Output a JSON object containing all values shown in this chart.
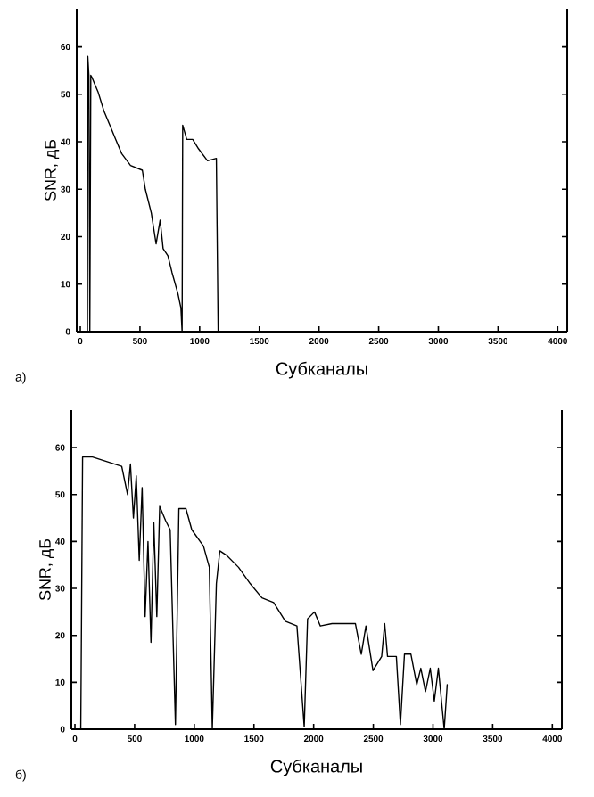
{
  "chart_data": [
    {
      "type": "line",
      "xlabel": "Субканалы",
      "ylabel": "SNR, дБ",
      "annotations": [
        "а)"
      ],
      "xlim": [
        -30,
        4080
      ],
      "ylim": [
        0,
        68
      ],
      "xticks": [
        0,
        500,
        1000,
        1500,
        2000,
        2500,
        3000,
        3500,
        4000
      ],
      "yticks": [
        0,
        10,
        20,
        30,
        40,
        50,
        60
      ],
      "series": [
        {
          "color": "#000000",
          "x": [
            60,
            63,
            72,
            80,
            88,
            99,
            149,
            198,
            248,
            297,
            347,
            421,
            520,
            545,
            595,
            635,
            669,
            694,
            734,
            768,
            818,
            843,
            853,
            858,
            892,
            942,
            991,
            1066,
            1140,
            1155
          ],
          "values": [
            0,
            58,
            54,
            0,
            54,
            53.5,
            50.5,
            46.5,
            43.5,
            40.5,
            37.5,
            35,
            34,
            30,
            25,
            18.5,
            23.5,
            17.5,
            16,
            12.5,
            8,
            5,
            0,
            43.5,
            40.5,
            40.5,
            38.5,
            36,
            36.5,
            0
          ]
        }
      ]
    },
    {
      "type": "line",
      "xlabel": "Субканалы",
      "ylabel": "SNR, дБ",
      "annotations": [
        "б)"
      ],
      "xlim": [
        -30,
        4080
      ],
      "ylim": [
        0,
        68
      ],
      "xticks": [
        0,
        500,
        1000,
        1500,
        2000,
        2500,
        3000,
        3500,
        4000
      ],
      "yticks": [
        0,
        10,
        20,
        30,
        40,
        50,
        60
      ],
      "series": [
        {
          "color": "#000000",
          "x": [
            49,
            64,
            147,
            392,
            441,
            465,
            490,
            514,
            539,
            563,
            588,
            612,
            637,
            661,
            686,
            710,
            759,
            798,
            842,
            871,
            930,
            979,
            1077,
            1126,
            1151,
            1185,
            1214,
            1273,
            1371,
            1469,
            1567,
            1665,
            1763,
            1860,
            1921,
            1949,
            2007,
            2056,
            2154,
            2350,
            2399,
            2438,
            2497,
            2570,
            2595,
            2619,
            2693,
            2727,
            2761,
            2815,
            2864,
            2898,
            2937,
            2977,
            3011,
            3045,
            3094,
            3119
          ],
          "values": [
            0,
            58,
            58,
            56,
            50,
            56.5,
            45,
            54,
            36,
            51.5,
            24,
            40,
            18.5,
            44,
            24,
            47.5,
            44.5,
            42.5,
            1,
            47,
            47,
            42.5,
            39,
            34.5,
            0,
            31,
            38,
            37,
            34.5,
            31,
            28,
            27,
            23,
            22,
            0.5,
            23.5,
            25,
            22,
            22.5,
            22.5,
            16,
            22,
            12.5,
            15.5,
            22.5,
            15.5,
            15.5,
            1,
            16,
            16,
            9.5,
            13,
            8,
            13,
            6,
            13,
            0,
            9.5
          ]
        }
      ]
    }
  ]
}
